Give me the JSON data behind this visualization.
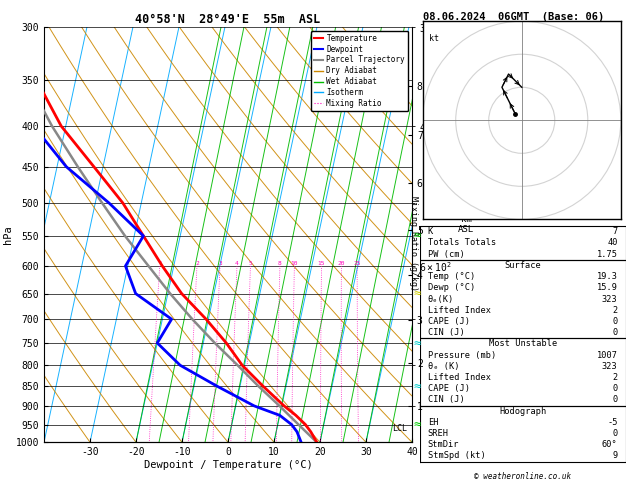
{
  "title_left": "40°58'N  28°49'E  55m  ASL",
  "title_right": "08.06.2024  06GMT  (Base: 06)",
  "xlabel": "Dewpoint / Temperature (°C)",
  "ylabel_left": "hPa",
  "pressure_ticks": [
    300,
    350,
    400,
    450,
    500,
    550,
    600,
    650,
    700,
    750,
    800,
    850,
    900,
    950,
    1000
  ],
  "xlim": [
    -40,
    40
  ],
  "xticklabels": [
    -30,
    -20,
    -10,
    0,
    10,
    20,
    30,
    40
  ],
  "pmin": 300,
  "pmax": 1000,
  "skew_factor": 37,
  "lcl_pressure": 960,
  "isotherm_color": "#00aaff",
  "dry_adiabat_color": "#cc8800",
  "wet_adiabat_color": "#00bb00",
  "mixing_ratio_color": "#ff00bb",
  "temp_profile_color": "#ff0000",
  "dewp_profile_color": "#0000ff",
  "parcel_color": "#888888",
  "temp_profile_p": [
    1000,
    970,
    950,
    925,
    900,
    850,
    800,
    750,
    700,
    650,
    600,
    550,
    500,
    450,
    400,
    350,
    300
  ],
  "temp_profile_t": [
    19.3,
    17.5,
    16.0,
    13.5,
    10.5,
    5.0,
    -0.5,
    -5.0,
    -10.5,
    -17.0,
    -22.5,
    -28.0,
    -34.0,
    -42.0,
    -51.0,
    -58.5,
    -62.0
  ],
  "dewp_profile_p": [
    1000,
    970,
    950,
    925,
    900,
    850,
    800,
    750,
    700,
    650,
    600,
    550,
    500,
    450,
    400,
    350,
    300
  ],
  "dewp_profile_t": [
    15.9,
    14.5,
    13.0,
    10.0,
    4.0,
    -5.0,
    -14.0,
    -20.0,
    -18.0,
    -27.0,
    -30.5,
    -28.0,
    -37.0,
    -48.0,
    -57.0,
    -62.5,
    -65.0
  ],
  "parcel_profile_p": [
    1000,
    950,
    900,
    850,
    800,
    750,
    700,
    650,
    600,
    550,
    500,
    450,
    400,
    350,
    300
  ],
  "parcel_profile_t": [
    19.3,
    14.5,
    9.5,
    4.0,
    -1.5,
    -7.5,
    -13.5,
    -19.5,
    -25.5,
    -32.0,
    -38.5,
    -45.5,
    -53.0,
    -60.5,
    -65.5
  ],
  "mixing_ratio_vals": [
    1,
    2,
    3,
    4,
    5,
    8,
    10,
    15,
    20,
    25
  ],
  "km_vals": [
    1,
    2,
    3,
    4,
    5,
    6,
    7,
    8
  ],
  "km_p": [
    899,
    795,
    701,
    616,
    540,
    472,
    411,
    356
  ],
  "hodo_u": [
    -1,
    -2,
    -3,
    -2,
    -1,
    0
  ],
  "hodo_v": [
    1,
    3,
    5,
    7,
    6,
    5
  ],
  "wind_colors": [
    "#00cc00",
    "#00cccc",
    "#00cccc",
    "#cccc00",
    "#00cc00"
  ],
  "wind_p": [
    950,
    850,
    750,
    650,
    550
  ],
  "stats": {
    "K": 7,
    "Totals_Totals": 40,
    "PW_cm": 1.75,
    "surface_temp": 19.3,
    "surface_dewp": 15.9,
    "surface_theta_e": 323,
    "surface_lifted_index": 2,
    "surface_CAPE": 0,
    "surface_CIN": 0,
    "mu_pressure": 1007,
    "mu_theta_e": 323,
    "mu_lifted_index": 2,
    "mu_CAPE": 0,
    "mu_CIN": 0,
    "EH": -5,
    "SREH": 0,
    "StmDir": "60°",
    "StmSpd": 9
  }
}
